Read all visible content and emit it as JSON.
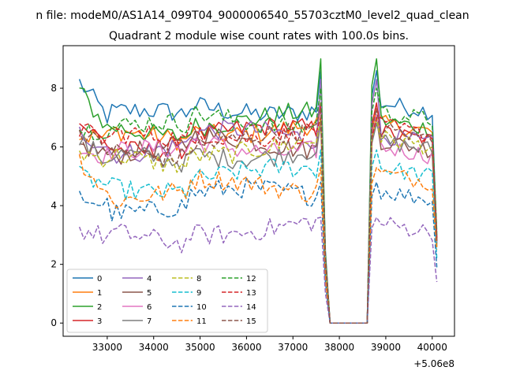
{
  "chart_data": {
    "type": "line",
    "suptitle": "n file: modeM0/AS1A14_099T04_9000006540_55703cztM0_level2_quad_clean",
    "title": "Quadrant 2 module wise count rates with 100.0s bins.",
    "xlabel": "",
    "ylabel": "",
    "x_offset_label": "+5.06e8",
    "xlim": [
      32050,
      40480
    ],
    "ylim": [
      -0.45,
      9.45
    ],
    "x_ticks": [
      33000,
      34000,
      35000,
      36000,
      37000,
      38000,
      39000,
      40000
    ],
    "x_tick_labels": [
      "33000",
      "34000",
      "35000",
      "36000",
      "37000",
      "38000",
      "39000",
      "40000"
    ],
    "y_ticks": [
      0,
      2,
      4,
      6,
      8
    ],
    "y_tick_labels": [
      "0",
      "2",
      "4",
      "6",
      "8"
    ],
    "legend_position": "lower-left",
    "legend_columns": 4,
    "x_start": 32400,
    "x_step": 100,
    "x_gap": [
      37800,
      38600
    ],
    "x_end": 40100,
    "series": [
      {
        "name": "0",
        "color": "#1f77b4",
        "dash": "solid",
        "level": 7.0,
        "start": 8.2,
        "peak": 8.6,
        "post": 7.2,
        "end": 2.9
      },
      {
        "name": "1",
        "color": "#ff7f0e",
        "dash": "solid",
        "level": 6.3,
        "start": 6.4,
        "peak": 7.3,
        "post": 6.5,
        "end": 2.8
      },
      {
        "name": "2",
        "color": "#2ca02c",
        "dash": "solid",
        "level": 6.6,
        "start": 7.9,
        "peak": 9.0,
        "post": 6.6,
        "end": 3.0
      },
      {
        "name": "3",
        "color": "#d62728",
        "dash": "solid",
        "level": 6.1,
        "start": 6.8,
        "peak": 7.5,
        "post": 6.2,
        "end": 2.8
      },
      {
        "name": "4",
        "color": "#9467bd",
        "dash": "solid",
        "level": 6.0,
        "start": 6.5,
        "peak": 8.3,
        "post": 6.1,
        "end": 2.7
      },
      {
        "name": "5",
        "color": "#8c564b",
        "dash": "solid",
        "level": 5.8,
        "start": 6.0,
        "peak": 7.0,
        "post": 5.9,
        "end": 2.7
      },
      {
        "name": "6",
        "color": "#e377c2",
        "dash": "solid",
        "level": 5.7,
        "start": 5.9,
        "peak": 7.1,
        "post": 5.7,
        "end": 2.6
      },
      {
        "name": "7",
        "color": "#7f7f7f",
        "dash": "solid",
        "level": 5.5,
        "start": 6.2,
        "peak": 6.8,
        "post": 5.9,
        "end": 2.6
      },
      {
        "name": "8",
        "color": "#bcbd22",
        "dash": "dashed",
        "level": 5.6,
        "start": 5.8,
        "peak": 7.0,
        "post": 6.0,
        "end": 2.6
      },
      {
        "name": "9",
        "color": "#17becf",
        "dash": "dashed",
        "level": 4.7,
        "start": 5.0,
        "peak": 5.9,
        "post": 5.0,
        "end": 2.2
      },
      {
        "name": "10",
        "color": "#1f77b4",
        "dash": "dashed",
        "level": 4.0,
        "start": 4.3,
        "peak": 4.8,
        "post": 4.2,
        "end": 1.9
      },
      {
        "name": "11",
        "color": "#ff7f0e",
        "dash": "dashed",
        "level": 4.3,
        "start": 5.6,
        "peak": 5.3,
        "post": 4.8,
        "end": 2.5
      },
      {
        "name": "12",
        "color": "#2ca02c",
        "dash": "dashed",
        "level": 6.6,
        "start": 6.6,
        "peak": 8.0,
        "post": 6.9,
        "end": 3.1
      },
      {
        "name": "13",
        "color": "#d62728",
        "dash": "dashed",
        "level": 6.2,
        "start": 6.6,
        "peak": 7.0,
        "post": 6.4,
        "end": 2.9
      },
      {
        "name": "14",
        "color": "#9467bd",
        "dash": "dashed",
        "level": 2.9,
        "start": 3.2,
        "peak": 3.6,
        "post": 3.1,
        "end": 1.4
      },
      {
        "name": "15",
        "color": "#8c564b",
        "dash": "dashed",
        "level": 5.9,
        "start": 6.5,
        "peak": 7.3,
        "post": 6.3,
        "end": 2.8
      }
    ]
  }
}
